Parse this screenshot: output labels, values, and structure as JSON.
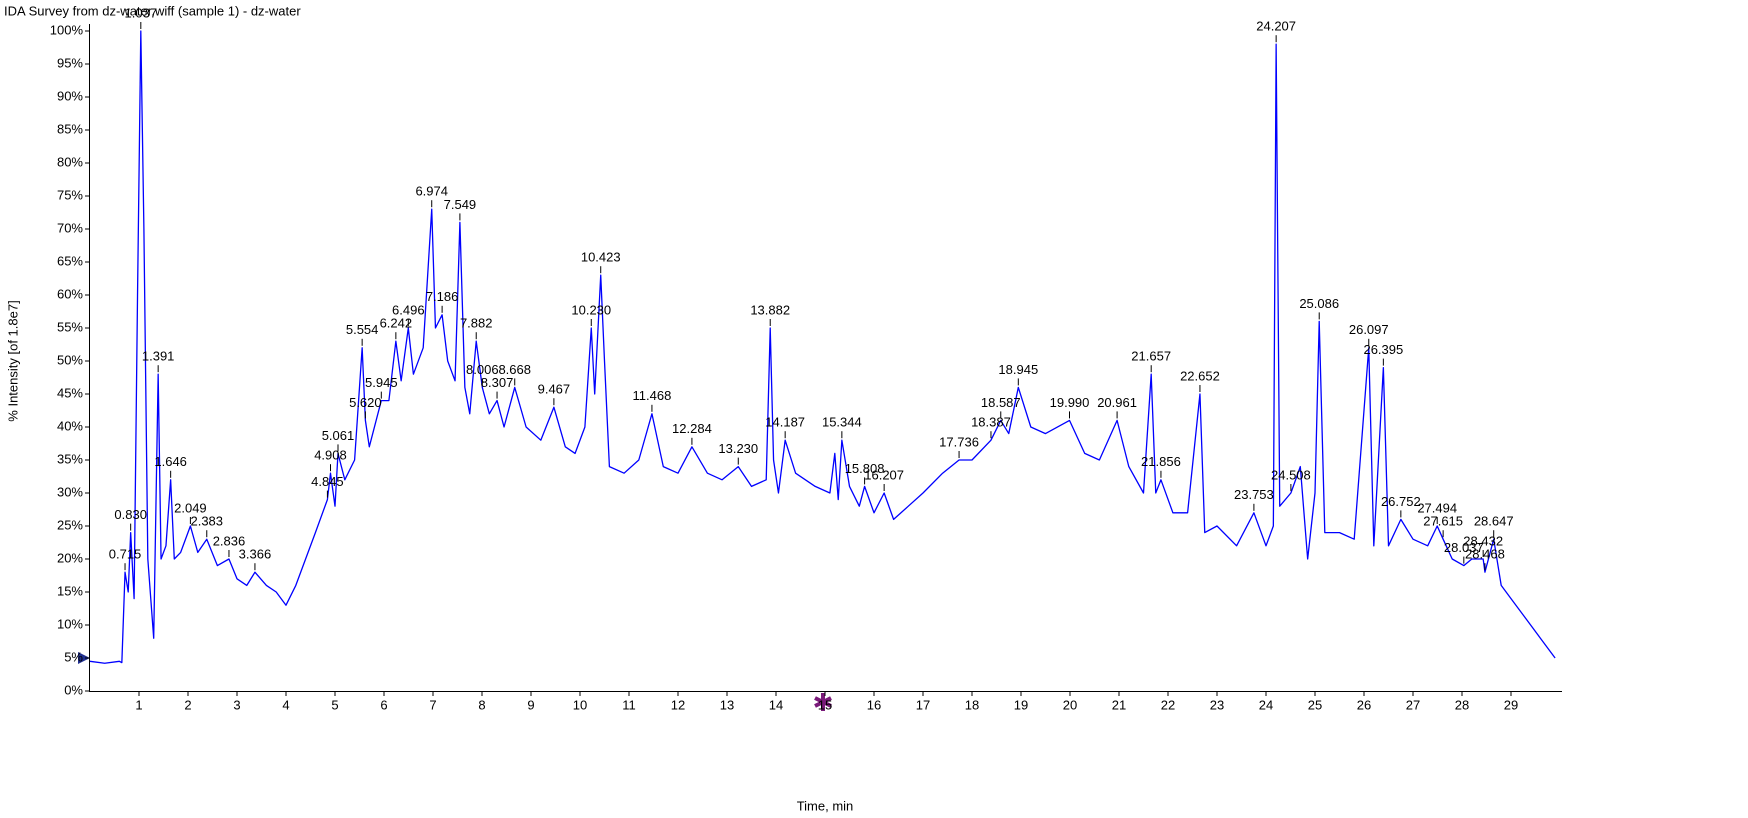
{
  "chart_data": {
    "type": "line",
    "title": "IDA Survey from dz-water.wiff (sample 1) - dz-water",
    "x_label": "Time, min",
    "y_label": "% Intensity [of 1.8e7]",
    "color": "#0000ff",
    "grid": false,
    "xlim": [
      0,
      30
    ],
    "ylim": [
      0,
      100
    ],
    "xticks": [
      1,
      2,
      3,
      4,
      5,
      6,
      7,
      8,
      9,
      10,
      11,
      12,
      13,
      14,
      15,
      16,
      17,
      18,
      19,
      20,
      21,
      22,
      23,
      24,
      25,
      26,
      27,
      28,
      29
    ],
    "yticks": [
      {
        "value": 0,
        "label": "0%"
      },
      {
        "value": 5,
        "label": "5%"
      },
      {
        "value": 10,
        "label": "10%"
      },
      {
        "value": 15,
        "label": "15%"
      },
      {
        "value": 20,
        "label": "20%"
      },
      {
        "value": 25,
        "label": "25%"
      },
      {
        "value": 30,
        "label": "30%"
      },
      {
        "value": 35,
        "label": "35%"
      },
      {
        "value": 40,
        "label": "40%"
      },
      {
        "value": 45,
        "label": "45%"
      },
      {
        "value": 50,
        "label": "50%"
      },
      {
        "value": 55,
        "label": "55%"
      },
      {
        "value": 60,
        "label": "60%"
      },
      {
        "value": 65,
        "label": "65%"
      },
      {
        "value": 70,
        "label": "70%"
      },
      {
        "value": 75,
        "label": "75%"
      },
      {
        "value": 80,
        "label": "80%"
      },
      {
        "value": 85,
        "label": "85%"
      },
      {
        "value": 90,
        "label": "90%"
      },
      {
        "value": 95,
        "label": "95%"
      },
      {
        "value": 100,
        "label": "100%"
      }
    ],
    "x": [
      0,
      0.3,
      0.6,
      0.65,
      0.715,
      0.78,
      0.83,
      0.9,
      0.97,
      1.037,
      1.1,
      1.18,
      1.3,
      1.391,
      1.45,
      1.55,
      1.646,
      1.72,
      1.85,
      2.049,
      2.2,
      2.383,
      2.6,
      2.836,
      3.0,
      3.2,
      3.366,
      3.6,
      3.8,
      4.0,
      4.2,
      4.4,
      4.6,
      4.845,
      4.908,
      5.0,
      5.061,
      5.2,
      5.4,
      5.554,
      5.62,
      5.7,
      5.945,
      6.1,
      6.242,
      6.35,
      6.496,
      6.6,
      6.8,
      6.974,
      7.05,
      7.186,
      7.3,
      7.45,
      7.549,
      7.65,
      7.75,
      7.882,
      8.006,
      8.15,
      8.307,
      8.45,
      8.668,
      8.9,
      9.2,
      9.467,
      9.7,
      9.9,
      10.1,
      10.23,
      10.3,
      10.423,
      10.5,
      10.6,
      10.9,
      11.2,
      11.468,
      11.7,
      12.0,
      12.284,
      12.6,
      12.9,
      13.23,
      13.5,
      13.8,
      13.882,
      13.95,
      14.05,
      14.187,
      14.4,
      14.8,
      15.1,
      15.2,
      15.27,
      15.344,
      15.5,
      15.7,
      15.808,
      16.0,
      16.207,
      16.4,
      16.7,
      17.0,
      17.4,
      17.736,
      18.0,
      18.387,
      18.587,
      18.75,
      18.945,
      19.2,
      19.5,
      19.99,
      20.3,
      20.6,
      20.961,
      21.2,
      21.5,
      21.657,
      21.75,
      21.856,
      22.1,
      22.4,
      22.652,
      22.75,
      23.0,
      23.4,
      23.753,
      24.0,
      24.15,
      24.207,
      24.28,
      24.508,
      24.7,
      24.85,
      25.0,
      25.086,
      25.2,
      25.5,
      25.8,
      26.097,
      26.2,
      26.395,
      26.5,
      26.752,
      27.0,
      27.3,
      27.494,
      27.615,
      27.8,
      28.037,
      28.2,
      28.432,
      28.468,
      28.647,
      28.8,
      29.0,
      29.3,
      29.6,
      29.9
    ],
    "values": [
      4.5,
      4.2,
      4.5,
      4.3,
      18,
      15,
      24,
      14,
      60,
      100,
      70,
      20,
      8,
      48,
      20,
      22,
      32,
      20,
      21,
      25,
      21,
      23,
      19,
      20,
      17,
      16,
      18,
      16,
      15,
      13,
      16,
      20,
      24,
      29,
      33,
      28,
      36,
      32,
      35,
      52,
      41,
      37,
      44,
      44,
      53,
      47,
      55,
      48,
      52,
      73,
      55,
      57,
      50,
      47,
      71,
      46,
      42,
      53,
      46,
      42,
      44,
      40,
      46,
      40,
      38,
      43,
      37,
      36,
      40,
      55,
      45,
      63,
      50,
      34,
      33,
      35,
      42,
      34,
      33,
      37,
      33,
      32,
      34,
      31,
      32,
      55,
      35,
      30,
      38,
      33,
      31,
      30,
      36,
      29,
      38,
      31,
      28,
      31,
      27,
      30,
      26,
      28,
      30,
      33,
      35,
      35,
      38,
      41,
      39,
      46,
      40,
      39,
      41,
      36,
      35,
      41,
      34,
      30,
      48,
      30,
      32,
      27,
      27,
      45,
      24,
      25,
      22,
      27,
      22,
      25,
      98,
      28,
      30,
      34,
      20,
      30,
      56,
      24,
      24,
      23,
      52,
      22,
      49,
      22,
      26,
      23,
      22,
      25,
      23,
      20,
      19,
      20,
      20,
      18,
      23,
      16,
      14,
      11,
      8,
      5
    ],
    "peaks": [
      {
        "label": "0.715",
        "x": 0.715,
        "y": 18
      },
      {
        "label": "0.830",
        "x": 0.83,
        "y": 24
      },
      {
        "label": "1.037",
        "x": 1.037,
        "y": 100
      },
      {
        "label": "1.391",
        "x": 1.391,
        "y": 48
      },
      {
        "label": "1.646",
        "x": 1.646,
        "y": 32
      },
      {
        "label": "2.049",
        "x": 2.049,
        "y": 25
      },
      {
        "label": "2.383",
        "x": 2.383,
        "y": 23
      },
      {
        "label": "2.836",
        "x": 2.836,
        "y": 20
      },
      {
        "label": "3.366",
        "x": 3.366,
        "y": 18
      },
      {
        "label": "4.845",
        "x": 4.845,
        "y": 29
      },
      {
        "label": "4.908",
        "x": 4.908,
        "y": 33
      },
      {
        "label": "5.061",
        "x": 5.061,
        "y": 36
      },
      {
        "label": "5.554",
        "x": 5.554,
        "y": 52
      },
      {
        "label": "5.620",
        "x": 5.62,
        "y": 41
      },
      {
        "label": "5.945",
        "x": 5.945,
        "y": 44
      },
      {
        "label": "6.242",
        "x": 6.242,
        "y": 53
      },
      {
        "label": "6.496",
        "x": 6.496,
        "y": 55
      },
      {
        "label": "6.974",
        "x": 6.974,
        "y": 73
      },
      {
        "label": "7.186",
        "x": 7.186,
        "y": 57
      },
      {
        "label": "7.549",
        "x": 7.549,
        "y": 71
      },
      {
        "label": "7.882",
        "x": 7.882,
        "y": 53
      },
      {
        "label": "8.006",
        "x": 8.006,
        "y": 46
      },
      {
        "label": "8.307",
        "x": 8.307,
        "y": 44
      },
      {
        "label": "8.668",
        "x": 8.668,
        "y": 46
      },
      {
        "label": "9.467",
        "x": 9.467,
        "y": 43
      },
      {
        "label": "10.230",
        "x": 10.23,
        "y": 55
      },
      {
        "label": "10.423",
        "x": 10.423,
        "y": 63
      },
      {
        "label": "11.468",
        "x": 11.468,
        "y": 42
      },
      {
        "label": "12.284",
        "x": 12.284,
        "y": 37
      },
      {
        "label": "13.230",
        "x": 13.23,
        "y": 34
      },
      {
        "label": "13.882",
        "x": 13.882,
        "y": 55
      },
      {
        "label": "14.187",
        "x": 14.187,
        "y": 38
      },
      {
        "label": "15.344",
        "x": 15.344,
        "y": 38
      },
      {
        "label": "15.808",
        "x": 15.808,
        "y": 31
      },
      {
        "label": "16.207",
        "x": 16.207,
        "y": 30
      },
      {
        "label": "17.736",
        "x": 17.736,
        "y": 35
      },
      {
        "label": "18.387",
        "x": 18.387,
        "y": 38
      },
      {
        "label": "18.587",
        "x": 18.587,
        "y": 41
      },
      {
        "label": "18.945",
        "x": 18.945,
        "y": 46
      },
      {
        "label": "19.990",
        "x": 19.99,
        "y": 41
      },
      {
        "label": "20.961",
        "x": 20.961,
        "y": 41
      },
      {
        "label": "21.657",
        "x": 21.657,
        "y": 48
      },
      {
        "label": "21.856",
        "x": 21.856,
        "y": 32
      },
      {
        "label": "22.652",
        "x": 22.652,
        "y": 45
      },
      {
        "label": "23.753",
        "x": 23.753,
        "y": 27
      },
      {
        "label": "24.207",
        "x": 24.207,
        "y": 98
      },
      {
        "label": "24.508",
        "x": 24.508,
        "y": 30
      },
      {
        "label": "25.086",
        "x": 25.086,
        "y": 56
      },
      {
        "label": "26.097",
        "x": 26.097,
        "y": 52
      },
      {
        "label": "26.395",
        "x": 26.395,
        "y": 49
      },
      {
        "label": "26.752",
        "x": 26.752,
        "y": 26
      },
      {
        "label": "27.494",
        "x": 27.494,
        "y": 25
      },
      {
        "label": "27.615",
        "x": 27.615,
        "y": 23
      },
      {
        "label": "28.037",
        "x": 28.037,
        "y": 19
      },
      {
        "label": "28.432",
        "x": 28.432,
        "y": 20
      },
      {
        "label": "28.468",
        "x": 28.468,
        "y": 18
      },
      {
        "label": "28.647",
        "x": 28.647,
        "y": 23
      }
    ]
  }
}
